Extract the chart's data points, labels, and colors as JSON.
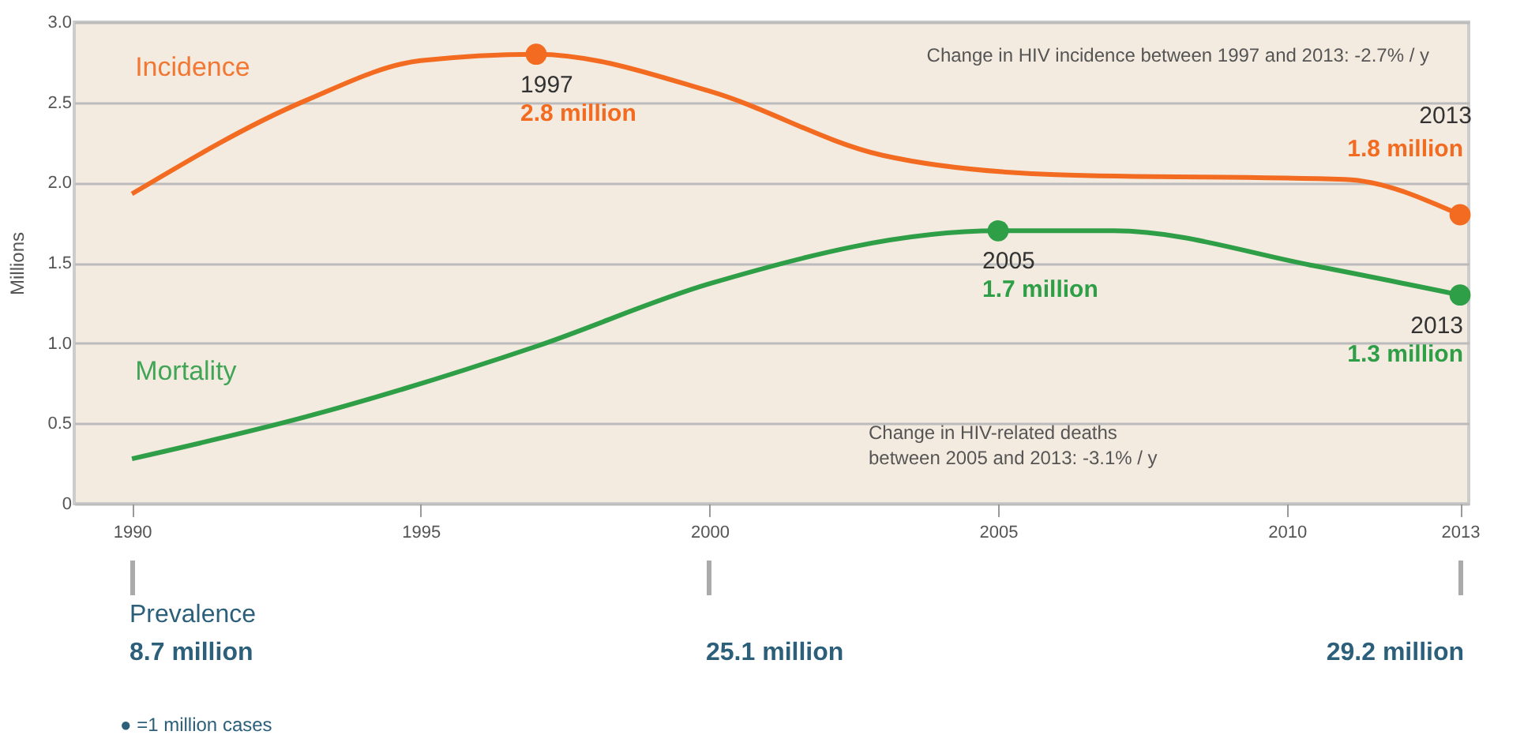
{
  "chart_data": {
    "type": "line",
    "ylabel": "Millions",
    "xlim": [
      1989,
      2013.15
    ],
    "xticks": [
      1990,
      1995,
      2000,
      2005,
      2010,
      2013
    ],
    "ylim": [
      0,
      3
    ],
    "yticks": [
      0,
      0.5,
      {
        "value": 1,
        "label": "1.0"
      },
      1.5,
      {
        "value": 2,
        "label": "2.0"
      },
      2.5,
      {
        "value": 3,
        "label": "3.0"
      }
    ],
    "grid": "y",
    "line_style": "solid",
    "series": [
      {
        "name": "Incidence",
        "color": "#f26b21",
        "x": [
          1990,
          1993,
          1995,
          1997,
          2000,
          2003,
          2006,
          2011,
          2013
        ],
        "values": [
          1.93,
          2.51,
          2.76,
          2.8,
          2.57,
          2.17,
          2.05,
          2.02,
          1.8
        ]
      },
      {
        "name": "Mortality",
        "color": "#2e9e47",
        "x": [
          1990,
          1993,
          1997,
          2000,
          2005,
          2007,
          2010.5,
          2013
        ],
        "values": [
          0.28,
          0.54,
          0.98,
          1.37,
          1.7,
          1.7,
          1.48,
          1.3
        ]
      }
    ],
    "annotations": [
      "Change in HIV incidence between 1997 and 2013: -2.7% / y",
      "Change in HIV-related deaths\nbetween 2005 and 2013: -3.1% / y",
      "● =1 million cases",
      {
        "text": "1997",
        "x": 1997,
        "y": 2.8
      },
      {
        "text": "2.8 million",
        "x": 1997,
        "y": 2.8
      },
      {
        "text": "1.8 million",
        "x": 2013,
        "y": 1.8
      },
      {
        "text": "2005",
        "x": 2005,
        "y": 1.7
      },
      {
        "text": "1.7 million",
        "x": 2005,
        "y": 1.7
      },
      {
        "text": "2013",
        "x": 2013,
        "y": 1.3
      },
      {
        "text": "1.3 million",
        "x": 2013,
        "y": 1.3
      },
      "Prevalence",
      "8.7 million",
      "25.1 million",
      "29.2 million",
      "2013"
    ]
  }
}
